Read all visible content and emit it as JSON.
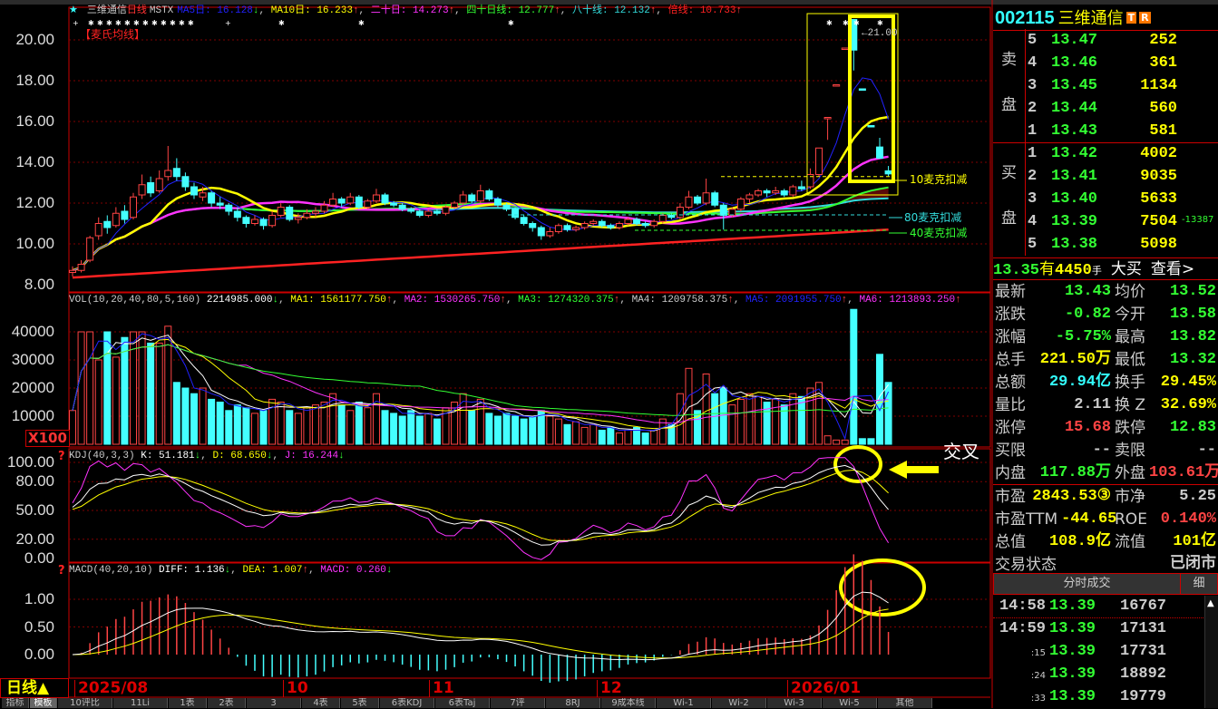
{
  "header": {
    "star": "★",
    "name": "三维通信",
    "period": "日线",
    "formula": "MSTX",
    "ma": [
      {
        "label": "MA5日: 16.128",
        "arrow": "↓",
        "color": "#2222ff",
        "ac": "#3f3"
      },
      {
        "label": "MA10日: 16.233",
        "arrow": "↑",
        "color": "#ffff00",
        "ac": "#f44"
      },
      {
        "label": "二十日: 14.273",
        "arrow": "↑",
        "color": "#ff33ff",
        "ac": "#f44"
      },
      {
        "label": "四十日线: 12.777",
        "arrow": "↑",
        "color": "#33ff33",
        "ac": "#f44"
      },
      {
        "label": "八十线: 12.132",
        "arrow": "↑",
        "color": "#33dddd",
        "ac": "#f44"
      },
      {
        "label": "倍线: 10.733",
        "arrow": "↑",
        "color": "#ff2222",
        "ac": "#f44"
      }
    ],
    "sub": "【麦氏均线】"
  },
  "price_axis": [
    "20.00",
    "18.00",
    "16.00",
    "14.00",
    "12.00",
    "10.00",
    "8.00"
  ],
  "annotations": {
    "high": "←21.00",
    "ma10": "10麦克扣减",
    "ma80": "80麦克扣减",
    "ma40": "40麦克扣减",
    "cross": "交叉",
    "book_side": "-13387"
  },
  "volume": {
    "title": "VOL(10,20,40,80,5,160)",
    "items": [
      {
        "label": "2214985.000",
        "arrow": "↓",
        "color": "#ffffff",
        "ac": "#3f3"
      },
      {
        "label": "MA1: 1561177.750",
        "arrow": "↑",
        "color": "#ffff00",
        "ac": "#f44"
      },
      {
        "label": "MA2: 1530265.750",
        "arrow": "↑",
        "color": "#ff33ff",
        "ac": "#f44"
      },
      {
        "label": "MA3: 1274320.375",
        "arrow": "↑",
        "color": "#33ff33",
        "ac": "#f44"
      },
      {
        "label": "MA4: 1209758.375",
        "arrow": "↑",
        "color": "#cccccc",
        "ac": "#f44"
      },
      {
        "label": "MA5: 2091955.750",
        "arrow": "↑",
        "color": "#2222ff",
        "ac": "#f44"
      },
      {
        "label": "MA6: 1213893.250",
        "arrow": "↑",
        "color": "#ff33ff",
        "ac": "#f44"
      }
    ],
    "axis": [
      "40000",
      "30000",
      "20000",
      "10000"
    ],
    "unit": "X100"
  },
  "kdj": {
    "title": "KDJ(40,3,3)",
    "items": [
      {
        "label": "K: 51.181",
        "arrow": "↓",
        "color": "#ffffff",
        "ac": "#3f3"
      },
      {
        "label": "D: 68.650",
        "arrow": "↓",
        "color": "#ffff00",
        "ac": "#3f3"
      },
      {
        "label": "J: 16.244",
        "arrow": "↓",
        "color": "#ff33ff",
        "ac": "#3f3"
      }
    ],
    "axis": [
      "100.00",
      "80.00",
      "50.00",
      "20.00",
      "0.00"
    ]
  },
  "macd": {
    "title": "MACD(40,20,10)",
    "items": [
      {
        "label": "DIFF: 1.136",
        "arrow": "↓",
        "color": "#ffffff",
        "ac": "#3f3"
      },
      {
        "label": "DEA: 1.007",
        "arrow": "↑",
        "color": "#ffff00",
        "ac": "#f44"
      },
      {
        "label": "MACD: 0.260",
        "arrow": "↓",
        "color": "#ff33ff",
        "ac": "#3f3"
      }
    ],
    "axis": [
      "1.00",
      "0.50",
      "0.00"
    ]
  },
  "xaxis": {
    "period_button": "日线▲",
    "dates": [
      "2025/08",
      "10",
      "11",
      "12",
      "2026/01"
    ]
  },
  "tabs": [
    "指标",
    "模板",
    "10评比",
    "11Li",
    "1表",
    "2表",
    "3",
    "4表",
    "5表",
    "6表KDJ",
    "6表Taj",
    "7评",
    "8RJ",
    "9成本线",
    "Wi-1",
    "Wi-2",
    "Wi-3",
    "Wi-5",
    "其他"
  ],
  "colors": {
    "up": "#ff4444",
    "down": "#44ffff",
    "grid": "#800000",
    "border": "#cc0000",
    "annotation": "#ffff00"
  },
  "chart_data": {
    "type": "candlestick",
    "ohlc": [
      [
        8.6,
        8.9,
        8.4,
        8.7
      ],
      [
        8.7,
        9.2,
        8.6,
        9.0
      ],
      [
        9.2,
        10.4,
        9.1,
        10.3
      ],
      [
        10.4,
        11.3,
        10.2,
        11.0
      ],
      [
        11.1,
        11.4,
        10.5,
        10.8
      ],
      [
        10.9,
        11.8,
        10.8,
        11.5
      ],
      [
        11.6,
        11.9,
        11.0,
        11.2
      ],
      [
        11.3,
        12.5,
        11.2,
        12.3
      ],
      [
        12.4,
        13.4,
        12.2,
        12.9
      ],
      [
        13.0,
        13.3,
        12.3,
        12.5
      ],
      [
        12.6,
        13.6,
        12.5,
        13.2
      ],
      [
        13.3,
        14.8,
        13.1,
        13.6
      ],
      [
        13.7,
        14.2,
        13.1,
        13.3
      ],
      [
        13.3,
        13.5,
        12.6,
        12.8
      ],
      [
        12.8,
        13.0,
        12.2,
        12.4
      ],
      [
        12.3,
        12.8,
        12.1,
        12.5
      ],
      [
        12.5,
        12.6,
        11.8,
        12.0
      ],
      [
        12.0,
        12.3,
        11.7,
        11.9
      ],
      [
        11.9,
        12.0,
        11.4,
        11.6
      ],
      [
        11.6,
        11.8,
        11.1,
        11.3
      ],
      [
        11.3,
        11.4,
        10.8,
        11.0
      ],
      [
        11.0,
        11.4,
        10.9,
        11.2
      ],
      [
        11.2,
        11.3,
        10.7,
        10.9
      ],
      [
        10.9,
        11.6,
        10.8,
        11.4
      ],
      [
        11.4,
        12.0,
        11.3,
        11.8
      ],
      [
        11.8,
        11.9,
        11.1,
        11.2
      ],
      [
        11.2,
        11.5,
        11.0,
        11.3
      ],
      [
        11.3,
        11.7,
        11.2,
        11.5
      ],
      [
        11.5,
        11.8,
        11.3,
        11.6
      ],
      [
        11.6,
        12.1,
        11.5,
        11.9
      ],
      [
        11.9,
        12.5,
        11.8,
        12.2
      ],
      [
        12.2,
        12.3,
        11.8,
        12.0
      ],
      [
        12.0,
        12.5,
        11.9,
        12.3
      ],
      [
        12.3,
        12.4,
        11.7,
        11.8
      ],
      [
        11.8,
        12.2,
        11.7,
        12.1
      ],
      [
        12.1,
        12.7,
        12.0,
        12.4
      ],
      [
        12.4,
        12.5,
        11.9,
        12.0
      ],
      [
        12.0,
        12.1,
        11.8,
        11.9
      ],
      [
        11.9,
        12.0,
        11.6,
        11.7
      ],
      [
        11.7,
        11.8,
        11.5,
        11.6
      ],
      [
        11.6,
        11.7,
        11.3,
        11.4
      ],
      [
        11.4,
        11.7,
        11.3,
        11.6
      ],
      [
        11.6,
        11.7,
        11.4,
        11.5
      ],
      [
        11.5,
        11.9,
        11.4,
        11.8
      ],
      [
        11.8,
        12.1,
        11.7,
        12.0
      ],
      [
        12.0,
        12.6,
        11.9,
        12.4
      ],
      [
        12.4,
        12.5,
        12.0,
        12.1
      ],
      [
        12.1,
        12.9,
        12.0,
        12.6
      ],
      [
        12.6,
        12.7,
        12.1,
        12.2
      ],
      [
        12.2,
        12.3,
        11.8,
        11.9
      ],
      [
        11.9,
        12.0,
        11.6,
        11.7
      ],
      [
        11.7,
        11.8,
        11.2,
        11.3
      ],
      [
        11.3,
        11.4,
        10.9,
        11.0
      ],
      [
        11.0,
        11.1,
        10.6,
        10.8
      ],
      [
        10.8,
        10.9,
        10.2,
        10.4
      ],
      [
        10.4,
        10.8,
        10.3,
        10.6
      ],
      [
        10.6,
        11.0,
        10.5,
        10.9
      ],
      [
        10.9,
        11.0,
        10.6,
        10.7
      ],
      [
        10.7,
        10.9,
        10.6,
        10.8
      ],
      [
        10.8,
        11.1,
        10.7,
        11.0
      ],
      [
        11.0,
        11.2,
        10.9,
        11.1
      ],
      [
        11.1,
        11.2,
        10.8,
        10.9
      ],
      [
        10.9,
        11.0,
        10.7,
        10.8
      ],
      [
        10.8,
        11.1,
        10.7,
        11.0
      ],
      [
        11.0,
        11.3,
        10.9,
        11.2
      ],
      [
        11.2,
        11.3,
        10.9,
        11.0
      ],
      [
        11.0,
        11.1,
        10.8,
        10.9
      ],
      [
        10.9,
        11.2,
        10.8,
        11.1
      ],
      [
        11.1,
        11.5,
        11.0,
        11.4
      ],
      [
        11.4,
        11.5,
        11.2,
        11.3
      ],
      [
        11.3,
        12.0,
        11.2,
        11.8
      ],
      [
        11.8,
        12.6,
        11.7,
        12.3
      ],
      [
        12.3,
        12.4,
        11.9,
        12.0
      ],
      [
        12.0,
        13.2,
        11.9,
        12.5
      ],
      [
        12.5,
        12.6,
        11.8,
        11.9
      ],
      [
        11.9,
        12.0,
        10.7,
        11.4
      ],
      [
        11.4,
        11.8,
        11.3,
        11.7
      ],
      [
        11.7,
        12.3,
        11.6,
        12.2
      ],
      [
        12.2,
        12.5,
        12.0,
        12.4
      ],
      [
        12.4,
        12.7,
        12.3,
        12.6
      ],
      [
        12.6,
        12.7,
        12.3,
        12.5
      ],
      [
        12.5,
        12.8,
        12.4,
        12.6
      ],
      [
        12.6,
        12.7,
        12.3,
        12.4
      ],
      [
        12.4,
        12.9,
        12.3,
        12.8
      ],
      [
        12.8,
        13.1,
        12.6,
        12.7
      ],
      [
        12.8,
        13.7,
        12.7,
        13.4
      ],
      [
        13.4,
        14.7,
        13.3,
        14.7
      ],
      [
        16.2,
        16.2,
        15.1,
        16.2
      ],
      [
        17.8,
        17.8,
        17.8,
        17.8
      ],
      [
        19.6,
        19.6,
        19.6,
        19.6
      ],
      [
        21.0,
        21.0,
        18.5,
        19.5
      ],
      [
        17.6,
        17.6,
        17.6,
        17.6
      ],
      [
        15.8,
        15.8,
        15.8,
        15.8
      ],
      [
        14.75,
        15.2,
        14.2,
        14.2
      ],
      [
        13.58,
        13.82,
        13.32,
        13.43
      ]
    ],
    "volume": [
      12000,
      40000,
      40000,
      30000,
      40000,
      31000,
      38000,
      40000,
      40000,
      36000,
      36000,
      42000,
      22000,
      20000,
      18000,
      20000,
      16000,
      15000,
      12000,
      14000,
      13000,
      11000,
      12000,
      16000,
      15000,
      12000,
      11000,
      13000,
      14000,
      15000,
      18000,
      14000,
      12000,
      15000,
      13000,
      18000,
      12000,
      11000,
      10000,
      12000,
      10000,
      11000,
      9000,
      13000,
      15000,
      18000,
      12000,
      16000,
      11000,
      10000,
      11000,
      10000,
      9000,
      10000,
      12000,
      10000,
      9000,
      7000,
      8000,
      6000,
      7000,
      5000,
      6000,
      4000,
      5000,
      6000,
      4000,
      5000,
      9000,
      7000,
      18000,
      27000,
      12000,
      25000,
      18000,
      20000,
      14000,
      16000,
      18000,
      17000,
      15000,
      16000,
      14000,
      18000,
      17000,
      20000,
      22000,
      3000,
      1500,
      1500,
      48000,
      2000,
      2000,
      32000,
      22000
    ],
    "price_range": [
      8,
      20
    ],
    "volume_range": [
      0,
      40000
    ],
    "kdj_range": [
      0,
      100
    ],
    "macd_range": [
      0,
      1
    ]
  },
  "quote": {
    "code": "002115",
    "name": "三维通信",
    "badges": [
      "T",
      "R"
    ],
    "sell_label": [
      "卖",
      "盘"
    ],
    "buy_label": [
      "买",
      "盘"
    ],
    "sell": [
      {
        "n": "5",
        "p": "13.47",
        "v": "252"
      },
      {
        "n": "4",
        "p": "13.46",
        "v": "361"
      },
      {
        "n": "3",
        "p": "13.45",
        "v": "1134"
      },
      {
        "n": "2",
        "p": "13.44",
        "v": "560"
      },
      {
        "n": "1",
        "p": "13.43",
        "v": "581"
      }
    ],
    "buy": [
      {
        "n": "1",
        "p": "13.42",
        "v": "4002"
      },
      {
        "n": "2",
        "p": "13.41",
        "v": "9035"
      },
      {
        "n": "3",
        "p": "13.40",
        "v": "5633"
      },
      {
        "n": "4",
        "p": "13.39",
        "v": "7504"
      },
      {
        "n": "5",
        "p": "13.38",
        "v": "5098"
      }
    ],
    "bigorder": {
      "price": "13.35",
      "has": "有",
      "qty": "4450",
      "unit": "手",
      "type": "大买",
      "view": "查看>"
    },
    "stats": [
      [
        {
          "k": "最新",
          "v": "13.43",
          "c": "g"
        },
        {
          "k": "均价",
          "v": "13.52",
          "c": "g"
        }
      ],
      [
        {
          "k": "涨跌",
          "v": "-0.82",
          "c": "g"
        },
        {
          "k": "今开",
          "v": "13.58",
          "c": "g"
        }
      ],
      [
        {
          "k": "涨幅",
          "v": "-5.75%",
          "c": "g"
        },
        {
          "k": "最高",
          "v": "13.82",
          "c": "g"
        }
      ],
      [
        {
          "k": "总手",
          "v": "221.50万",
          "c": "y"
        },
        {
          "k": "最低",
          "v": "13.32",
          "c": "g"
        }
      ],
      [
        {
          "k": "总额",
          "v": "29.94亿",
          "c": "c"
        },
        {
          "k": "换手",
          "v": "29.45%",
          "c": "y"
        }
      ],
      [
        {
          "k": "量比",
          "v": "2.11",
          "c": "w"
        },
        {
          "k": "换 Z",
          "v": "32.69%",
          "c": "y"
        }
      ],
      [
        {
          "k": "涨停",
          "v": "15.68",
          "c": "r"
        },
        {
          "k": "跌停",
          "v": "12.83",
          "c": "g"
        }
      ],
      [
        {
          "k": "买限",
          "v": "--",
          "c": "w"
        },
        {
          "k": "卖限",
          "v": "--",
          "c": "w"
        }
      ],
      [
        {
          "k": "内盘",
          "v": "117.88万",
          "c": "g"
        },
        {
          "k": "外盘",
          "v": "103.61万",
          "c": "r"
        }
      ],
      [
        {
          "k": "市盈",
          "v": "2843.53③",
          "c": "y"
        },
        {
          "k": "市净",
          "v": "5.25",
          "c": "w"
        }
      ],
      [
        {
          "k": "市盈TTM",
          "v": "-44.65",
          "c": "y"
        },
        {
          "k": "ROE",
          "v": "0.140%",
          "c": "r"
        }
      ],
      [
        {
          "k": "总值",
          "v": "108.9亿",
          "c": "y"
        },
        {
          "k": "流值",
          "v": "101亿",
          "c": "y"
        }
      ],
      [
        {
          "k": "交易状态",
          "v": "已闭市",
          "c": "w"
        }
      ]
    ],
    "ticks_title": "分时成交",
    "ticks_detail": "细",
    "ticks": [
      {
        "t": "14:58",
        "p": "13.39",
        "v": "16767"
      },
      {
        "t": "14:59",
        "p": "13.39",
        "v": "17131"
      },
      {
        "t": ":15",
        "p": "13.39",
        "v": "17731"
      },
      {
        "t": ":24",
        "p": "13.39",
        "v": "18892"
      },
      {
        "t": ":33",
        "p": "13.39",
        "v": "19779"
      }
    ]
  }
}
